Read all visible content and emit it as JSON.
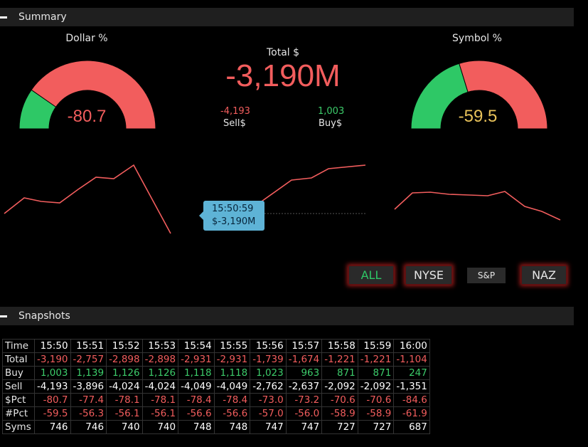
{
  "summary": {
    "title": "Summary",
    "dollar_label": "Dollar %",
    "dollar_value": "-80.7",
    "dollar_pct": -80.7,
    "symbol_label": "Symbol %",
    "symbol_value": "-59.5",
    "symbol_pct": -59.5,
    "total_label": "Total $",
    "total_value": "-3,190M",
    "sell_value": "-4,193",
    "sell_label": "Sell$",
    "buy_value": "1,003",
    "buy_label": "Buy$",
    "tooltip_time": "15:50:59",
    "tooltip_value": "$-3,190M",
    "colors": {
      "negative": "#f25d5d",
      "positive": "#2ec866",
      "neutral_value": "#e8c25a",
      "tooltip": "#5eb3d6"
    }
  },
  "market_buttons": [
    {
      "label": "ALL",
      "active": true
    },
    {
      "label": "NYSE",
      "active": false
    },
    {
      "label": "S&P",
      "active": false
    },
    {
      "label": "NAZ",
      "active": false
    }
  ],
  "snapshots": {
    "title": "Snapshots",
    "rows": [
      {
        "label": "Time",
        "cells": [
          "15:50",
          "15:51",
          "15:52",
          "15:53",
          "15:54",
          "15:55",
          "15:56",
          "15:57",
          "15:58",
          "15:59",
          "16:00"
        ]
      },
      {
        "label": "Total",
        "cells": [
          "-3,190",
          "-2,757",
          "-2,898",
          "-2,898",
          "-2,931",
          "-2,931",
          "-1,739",
          "-1,674",
          "-1,221",
          "-1,221",
          "-1,104"
        ]
      },
      {
        "label": "Buy",
        "cells": [
          "1,003",
          "1,139",
          "1,126",
          "1,126",
          "1,118",
          "1,118",
          "1,023",
          "963",
          "871",
          "871",
          "247"
        ]
      },
      {
        "label": "Sell",
        "cells": [
          "-4,193",
          "-3,896",
          "-4,024",
          "-4,024",
          "-4,049",
          "-4,049",
          "-2,762",
          "-2,637",
          "-2,092",
          "-2,092",
          "-1,351"
        ]
      },
      {
        "label": "$Pct",
        "cells": [
          "-80.7",
          "-77.4",
          "-78.1",
          "-78.1",
          "-78.4",
          "-78.4",
          "-73.0",
          "-73.2",
          "-70.6",
          "-70.6",
          "-84.6"
        ]
      },
      {
        "label": "#Pct",
        "cells": [
          "-59.5",
          "-56.3",
          "-56.1",
          "-56.1",
          "-56.6",
          "-56.6",
          "-57.0",
          "-56.0",
          "-58.9",
          "-58.9",
          "-61.9"
        ]
      },
      {
        "label": "Syms",
        "cells": [
          "746",
          "746",
          "740",
          "740",
          "748",
          "748",
          "747",
          "747",
          "727",
          "727",
          "687"
        ]
      }
    ]
  }
}
